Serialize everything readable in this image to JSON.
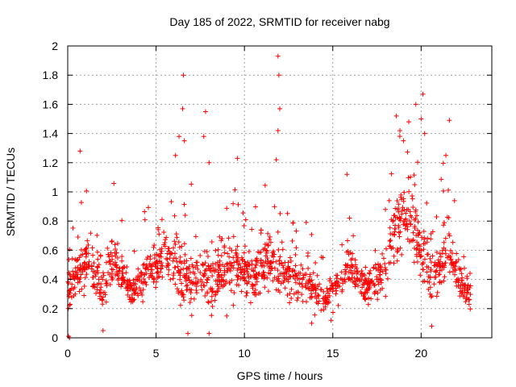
{
  "chart_data": {
    "type": "scatter",
    "title": "Day 185 of 2022, SRMTID for receiver nabg",
    "xlabel": "GPS time / hours",
    "ylabel": "SRMTID / TECUs",
    "xlim": [
      0,
      24
    ],
    "ylim": [
      0,
      2
    ],
    "xticks": [
      0,
      5,
      10,
      15,
      20
    ],
    "xtick_labels": [
      "0",
      "5",
      "10",
      "15",
      "20"
    ],
    "yticks": [
      0,
      0.2,
      0.4,
      0.6,
      0.8,
      1.0,
      1.2,
      1.4,
      1.6,
      1.8,
      2.0
    ],
    "ytick_labels": [
      "0",
      "0.2",
      "0.4",
      "0.6",
      "0.8",
      "1",
      "1.2",
      "1.4",
      "1.6",
      "1.8",
      "2"
    ],
    "grid": true,
    "marker": "plus",
    "color": "#ff0000",
    "x_end": 22.8,
    "envelope": [
      [
        0.0,
        0.32,
        0.12
      ],
      [
        0.5,
        0.42,
        0.15
      ],
      [
        1.0,
        0.52,
        0.17
      ],
      [
        1.5,
        0.48,
        0.16
      ],
      [
        2.0,
        0.33,
        0.14
      ],
      [
        2.5,
        0.52,
        0.17
      ],
      [
        3.0,
        0.46,
        0.14
      ],
      [
        3.5,
        0.34,
        0.1
      ],
      [
        4.0,
        0.36,
        0.1
      ],
      [
        4.5,
        0.46,
        0.14
      ],
      [
        5.0,
        0.48,
        0.14
      ],
      [
        5.5,
        0.6,
        0.17
      ],
      [
        6.0,
        0.56,
        0.2
      ],
      [
        6.5,
        0.42,
        0.22
      ],
      [
        7.0,
        0.4,
        0.2
      ],
      [
        7.5,
        0.42,
        0.17
      ],
      [
        8.0,
        0.38,
        0.17
      ],
      [
        8.5,
        0.45,
        0.17
      ],
      [
        9.0,
        0.45,
        0.16
      ],
      [
        9.5,
        0.52,
        0.18
      ],
      [
        10.0,
        0.44,
        0.16
      ],
      [
        10.5,
        0.42,
        0.14
      ],
      [
        11.0,
        0.48,
        0.16
      ],
      [
        11.5,
        0.54,
        0.18
      ],
      [
        12.0,
        0.48,
        0.18
      ],
      [
        12.5,
        0.42,
        0.14
      ],
      [
        13.0,
        0.4,
        0.14
      ],
      [
        13.5,
        0.38,
        0.14
      ],
      [
        14.0,
        0.34,
        0.12
      ],
      [
        14.5,
        0.26,
        0.1
      ],
      [
        15.0,
        0.34,
        0.12
      ],
      [
        15.5,
        0.42,
        0.12
      ],
      [
        16.0,
        0.48,
        0.14
      ],
      [
        16.5,
        0.4,
        0.12
      ],
      [
        17.0,
        0.36,
        0.12
      ],
      [
        17.5,
        0.38,
        0.12
      ],
      [
        18.0,
        0.48,
        0.15
      ],
      [
        18.5,
        0.72,
        0.22
      ],
      [
        19.0,
        0.82,
        0.24
      ],
      [
        19.5,
        0.8,
        0.24
      ],
      [
        20.0,
        0.62,
        0.22
      ],
      [
        20.5,
        0.4,
        0.16
      ],
      [
        21.0,
        0.46,
        0.16
      ],
      [
        21.5,
        0.62,
        0.2
      ],
      [
        22.0,
        0.46,
        0.16
      ],
      [
        22.5,
        0.32,
        0.1
      ],
      [
        22.8,
        0.3,
        0.08
      ]
    ],
    "outliers": [
      [
        0.7,
        1.28
      ],
      [
        6.3,
        1.38
      ],
      [
        6.5,
        1.57
      ],
      [
        6.55,
        1.8
      ],
      [
        6.6,
        1.35
      ],
      [
        7.8,
        1.55
      ],
      [
        7.7,
        1.38
      ],
      [
        9.6,
        1.23
      ],
      [
        11.9,
        1.93
      ],
      [
        11.95,
        1.8
      ],
      [
        12.0,
        1.57
      ],
      [
        11.9,
        1.42
      ],
      [
        15.8,
        1.12
      ],
      [
        18.6,
        1.52
      ],
      [
        18.8,
        1.42
      ],
      [
        19.3,
        1.48
      ],
      [
        19.7,
        1.6
      ],
      [
        20.1,
        1.67
      ],
      [
        20.0,
        1.5
      ],
      [
        21.6,
        1.49
      ],
      [
        21.4,
        1.25
      ],
      [
        6.1,
        1.25
      ],
      [
        8.0,
        1.2
      ],
      [
        11.8,
        1.22
      ],
      [
        19.0,
        1.35
      ],
      [
        20.2,
        1.4
      ],
      [
        0.1,
        0.0
      ],
      [
        0.05,
        0.01
      ],
      [
        2.0,
        0.05
      ],
      [
        6.8,
        0.03
      ],
      [
        8.0,
        0.03
      ],
      [
        9.0,
        0.15
      ],
      [
        13.8,
        0.1
      ],
      [
        14.9,
        0.12
      ],
      [
        20.6,
        0.08
      ]
    ]
  }
}
